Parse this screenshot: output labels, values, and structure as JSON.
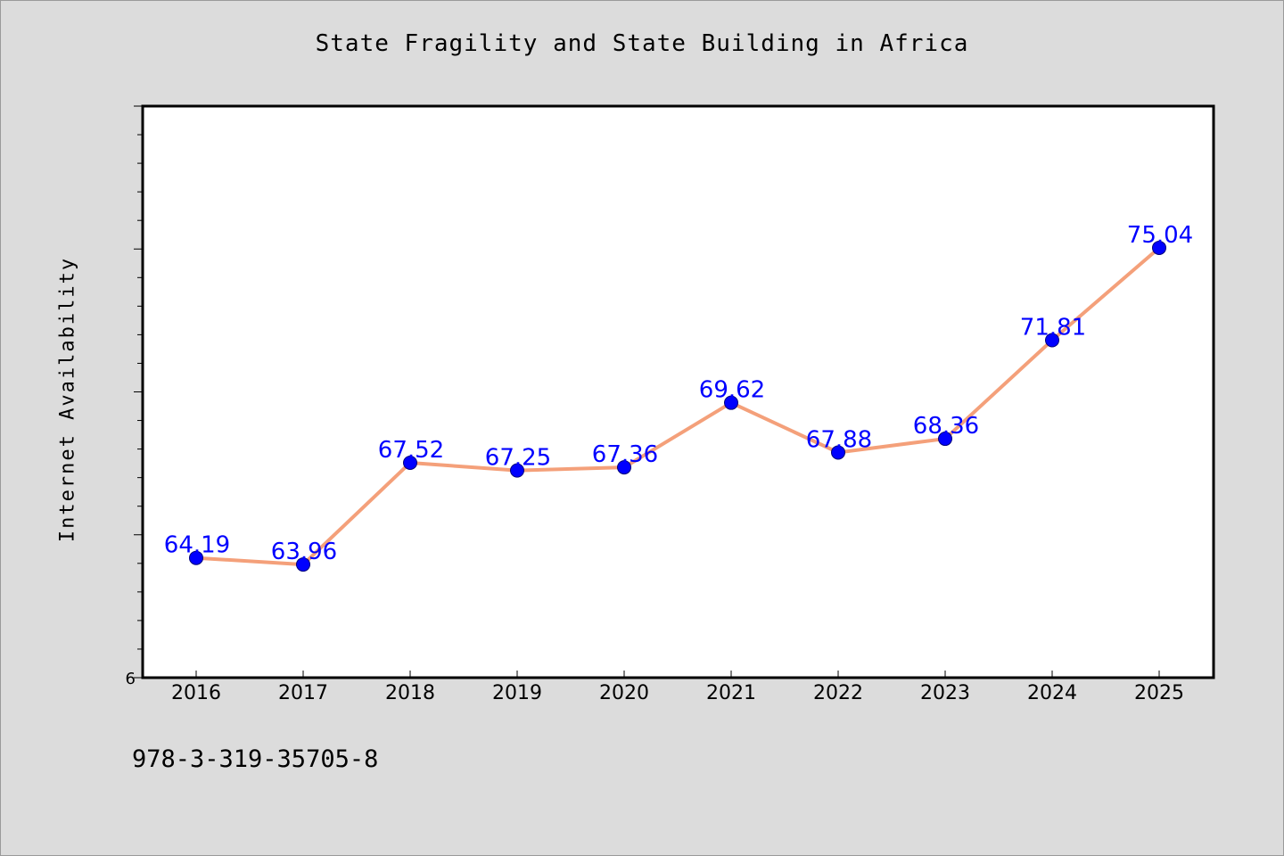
{
  "chart_data": {
    "type": "line",
    "title": "State Fragility and State Building in Africa",
    "xlabel": "",
    "ylabel": "Internet Availability",
    "categories": [
      "2016",
      "2017",
      "2018",
      "2019",
      "2020",
      "2021",
      "2022",
      "2023",
      "2024",
      "2025"
    ],
    "series": [
      {
        "values": [
          64.19,
          63.96,
          67.52,
          67.25,
          67.36,
          69.62,
          67.88,
          68.36,
          71.81,
          75.04
        ],
        "labels": [
          "64.19",
          "63.96",
          "67.52",
          "67.25",
          "67.36",
          "69.62",
          "67.88",
          "68.36",
          "71.81",
          "75.04"
        ],
        "line_color": "#f4a07a",
        "marker_color": "#0000ff"
      }
    ],
    "ylim": [
      60,
      80
    ],
    "y_tick_labels": [
      "6"
    ],
    "grid": false,
    "label_color": "#0000ff"
  },
  "footer": {
    "isbn": "978-3-319-35705-8"
  },
  "colors": {
    "background": "#dcdcdc",
    "plot_background": "#ffffff",
    "axis": "#000000"
  }
}
